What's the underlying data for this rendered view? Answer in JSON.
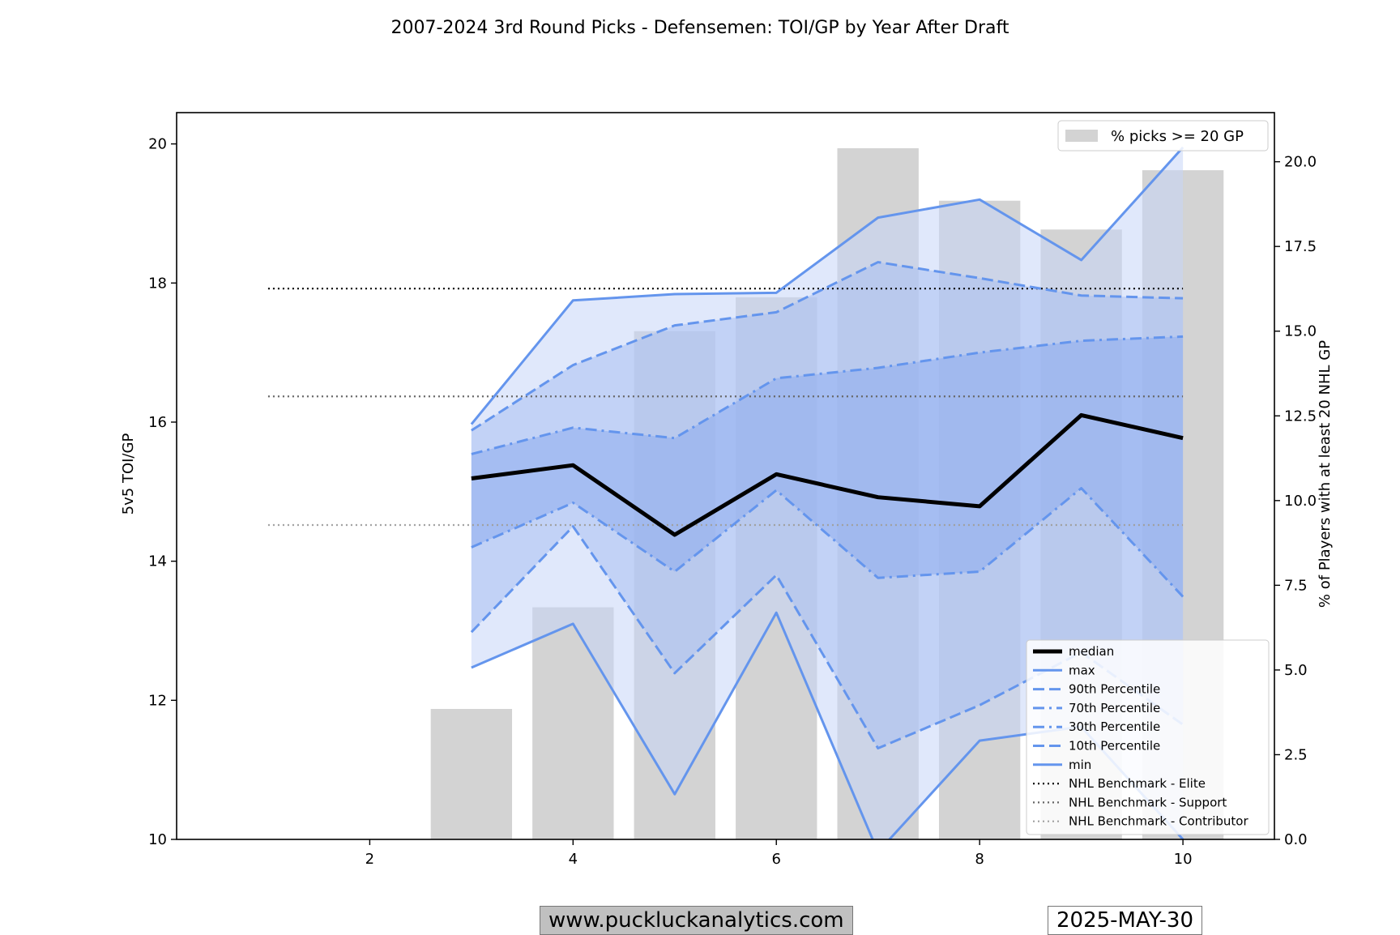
{
  "chart_data": {
    "type": "line",
    "title": "2007-2024 3rd Round Picks - Defensemen: TOI/GP by Year After Draft",
    "xlabel": "",
    "ylabel": "5v5 TOI/GP",
    "y2label": "% of Players with at least 20 NHL GP",
    "xlim": [
      0.1,
      10.9
    ],
    "ylim": [
      10,
      20.45
    ],
    "y2lim": [
      0,
      21.45
    ],
    "x_ticks": [
      2,
      4,
      6,
      8,
      10
    ],
    "y_ticks": [
      10,
      12,
      14,
      16,
      18,
      20
    ],
    "y2_ticks": [
      "0.0",
      "2.5",
      "5.0",
      "7.5",
      "10.0",
      "12.5",
      "15.0",
      "17.5",
      "20.0"
    ],
    "x": [
      3,
      4,
      5,
      6,
      7,
      8,
      9,
      10
    ],
    "series": [
      {
        "name": "max",
        "style": "solid",
        "values": [
          15.97,
          17.75,
          17.84,
          17.86,
          18.94,
          19.2,
          18.33,
          19.95
        ]
      },
      {
        "name": "90th Percentile",
        "style": "dashed",
        "values": [
          15.88,
          16.82,
          17.39,
          17.58,
          18.3,
          18.07,
          17.82,
          17.78
        ]
      },
      {
        "name": "70th Percentile",
        "style": "dashdot",
        "values": [
          15.54,
          15.92,
          15.77,
          16.63,
          16.78,
          17.0,
          17.17,
          17.23
        ]
      },
      {
        "name": "median",
        "style": "solid-bold",
        "values": [
          15.19,
          15.38,
          14.38,
          15.25,
          14.92,
          14.79,
          16.1,
          15.77
        ]
      },
      {
        "name": "30th Percentile",
        "style": "dashdot",
        "values": [
          14.2,
          14.84,
          13.85,
          15.02,
          13.76,
          13.85,
          15.05,
          13.49
        ]
      },
      {
        "name": "10th Percentile",
        "style": "dashed",
        "values": [
          12.98,
          14.5,
          12.39,
          13.8,
          11.31,
          11.93,
          12.69,
          11.65
        ]
      },
      {
        "name": "min",
        "style": "solid",
        "values": [
          12.47,
          13.1,
          10.65,
          13.26,
          9.82,
          11.42,
          11.62,
          10.0
        ]
      }
    ],
    "benchmarks": [
      {
        "name": "NHL Benchmark - Elite",
        "value": 17.92,
        "color": "#000000"
      },
      {
        "name": "NHL Benchmark - Support",
        "value": 16.37,
        "color": "#666666"
      },
      {
        "name": "NHL Benchmark - Contributor",
        "value": 14.52,
        "color": "#a0a0a0"
      }
    ],
    "bars": {
      "name": "% picks >= 20 GP",
      "x": [
        3,
        4,
        5,
        6,
        7,
        8,
        9,
        10
      ],
      "values": [
        3.85,
        6.85,
        15.0,
        16.0,
        20.4,
        18.85,
        18.0,
        19.75
      ]
    },
    "legend_lines": [
      "median",
      "max",
      "90th Percentile",
      "70th Percentile",
      "30th Percentile",
      "10th Percentile",
      "min",
      "NHL Benchmark - Elite",
      "NHL Benchmark - Support",
      "NHL Benchmark - Contributor"
    ],
    "legend_placement": "lower-right",
    "bar_legend_placement": "upper-right"
  },
  "colors": {
    "line": "#6495ed",
    "median": "#000000",
    "bar": "#d3d3d3",
    "band_outer": "#e0e8fa",
    "band_mid": "#c1d3f6",
    "band_inner": "#a2bdf2"
  },
  "footer": {
    "website": "www.puckluckanalytics.com",
    "date": "2025-MAY-30"
  }
}
